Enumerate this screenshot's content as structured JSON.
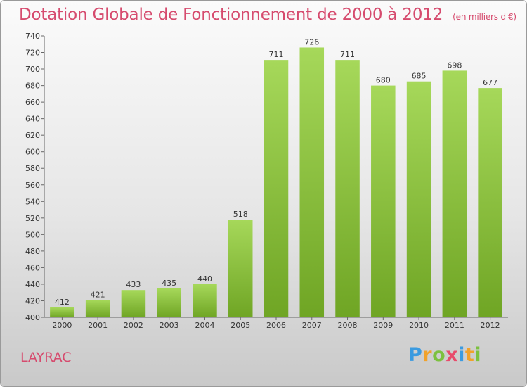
{
  "header": {
    "title": "Dotation Globale de Fonctionnement de 2000 à 2012",
    "unit": "(en milliers d'€)"
  },
  "footer": {
    "commune": "LAYRAC",
    "logo_letters": [
      "P",
      "r",
      "o",
      "x",
      "i",
      "t",
      "i"
    ]
  },
  "chart_data": {
    "type": "bar",
    "title": "Dotation Globale de Fonctionnement de 2000 à 2012",
    "subtitle": "(en milliers d'€)",
    "categories": [
      "2000",
      "2001",
      "2002",
      "2003",
      "2004",
      "2005",
      "2006",
      "2007",
      "2008",
      "2009",
      "2010",
      "2011",
      "2012"
    ],
    "values": [
      412,
      421,
      433,
      435,
      440,
      518,
      711,
      726,
      711,
      680,
      685,
      698,
      677
    ],
    "xlabel": "",
    "ylabel": "",
    "ylim": [
      400,
      740
    ],
    "yticks": [
      400,
      420,
      440,
      460,
      480,
      500,
      520,
      540,
      560,
      580,
      600,
      620,
      640,
      660,
      680,
      700,
      720,
      740
    ],
    "grid": false,
    "bar_color_light": "#a6d85a",
    "bar_color_dark": "#6fa524"
  }
}
